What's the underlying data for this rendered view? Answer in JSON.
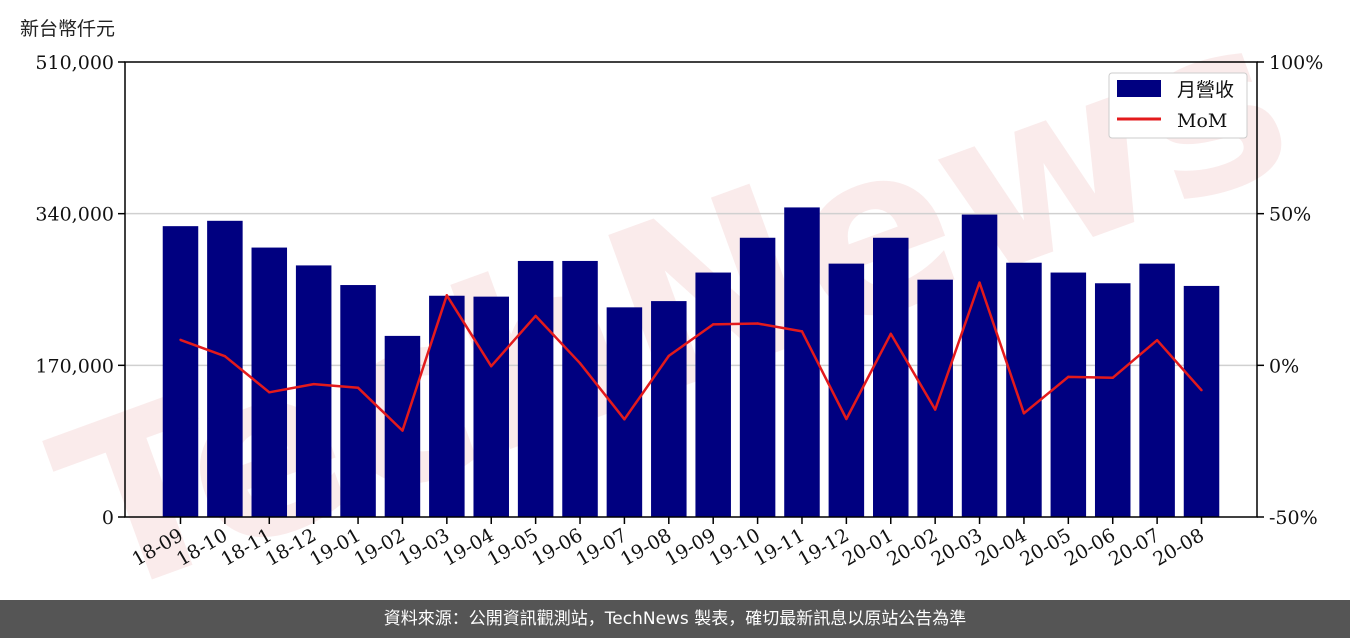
{
  "chart_data": {
    "type": "bar",
    "unit_label": "新台幣仟元",
    "categories": [
      "18-09",
      "18-10",
      "18-11",
      "18-12",
      "19-01",
      "19-02",
      "19-03",
      "19-04",
      "19-05",
      "19-06",
      "19-07",
      "19-08",
      "19-09",
      "19-10",
      "19-11",
      "19-12",
      "20-01",
      "20-02",
      "20-03",
      "20-04",
      "20-05",
      "20-06",
      "20-07",
      "20-08"
    ],
    "series": [
      {
        "name": "月營收",
        "axis": "left",
        "kind": "bar",
        "color": "#000080",
        "values": [
          326000,
          332000,
          302000,
          282000,
          260000,
          203000,
          248000,
          247000,
          287000,
          287000,
          235000,
          242000,
          274000,
          313000,
          347000,
          284000,
          313000,
          266000,
          339000,
          285000,
          274000,
          262000,
          284000,
          259000
        ]
      },
      {
        "name": "MoM",
        "axis": "right",
        "kind": "line",
        "color": "#e31a1c",
        "values": [
          8.4,
          3.0,
          -8.9,
          -6.2,
          -7.4,
          -21.5,
          23.1,
          -0.3,
          16.3,
          0.7,
          -17.8,
          3.1,
          13.5,
          13.8,
          11.2,
          -17.7,
          10.4,
          -14.6,
          27.3,
          -15.8,
          -3.8,
          -4.1,
          8.3,
          -8.2
        ]
      }
    ],
    "ylim_left": [
      0,
      510000
    ],
    "yticks_left": [
      {
        "value": 0,
        "label": "0"
      },
      {
        "value": 170000,
        "label": "170,000"
      },
      {
        "value": 340000,
        "label": "340,000"
      },
      {
        "value": 510000,
        "label": "510,000"
      }
    ],
    "ylim_right": [
      -50,
      100
    ],
    "yticks_right": [
      {
        "value": -50,
        "label": "-50%"
      },
      {
        "value": 0,
        "label": "0%"
      },
      {
        "value": 50,
        "label": "50%"
      },
      {
        "value": 100,
        "label": "100%"
      }
    ],
    "grid": "horizontal",
    "legend_position": "top-right"
  },
  "watermark": "TechNews",
  "footer": {
    "source_text": "資料來源：公開資訊觀測站，TechNews 製表，確切最新訊息以原站公告為準"
  }
}
